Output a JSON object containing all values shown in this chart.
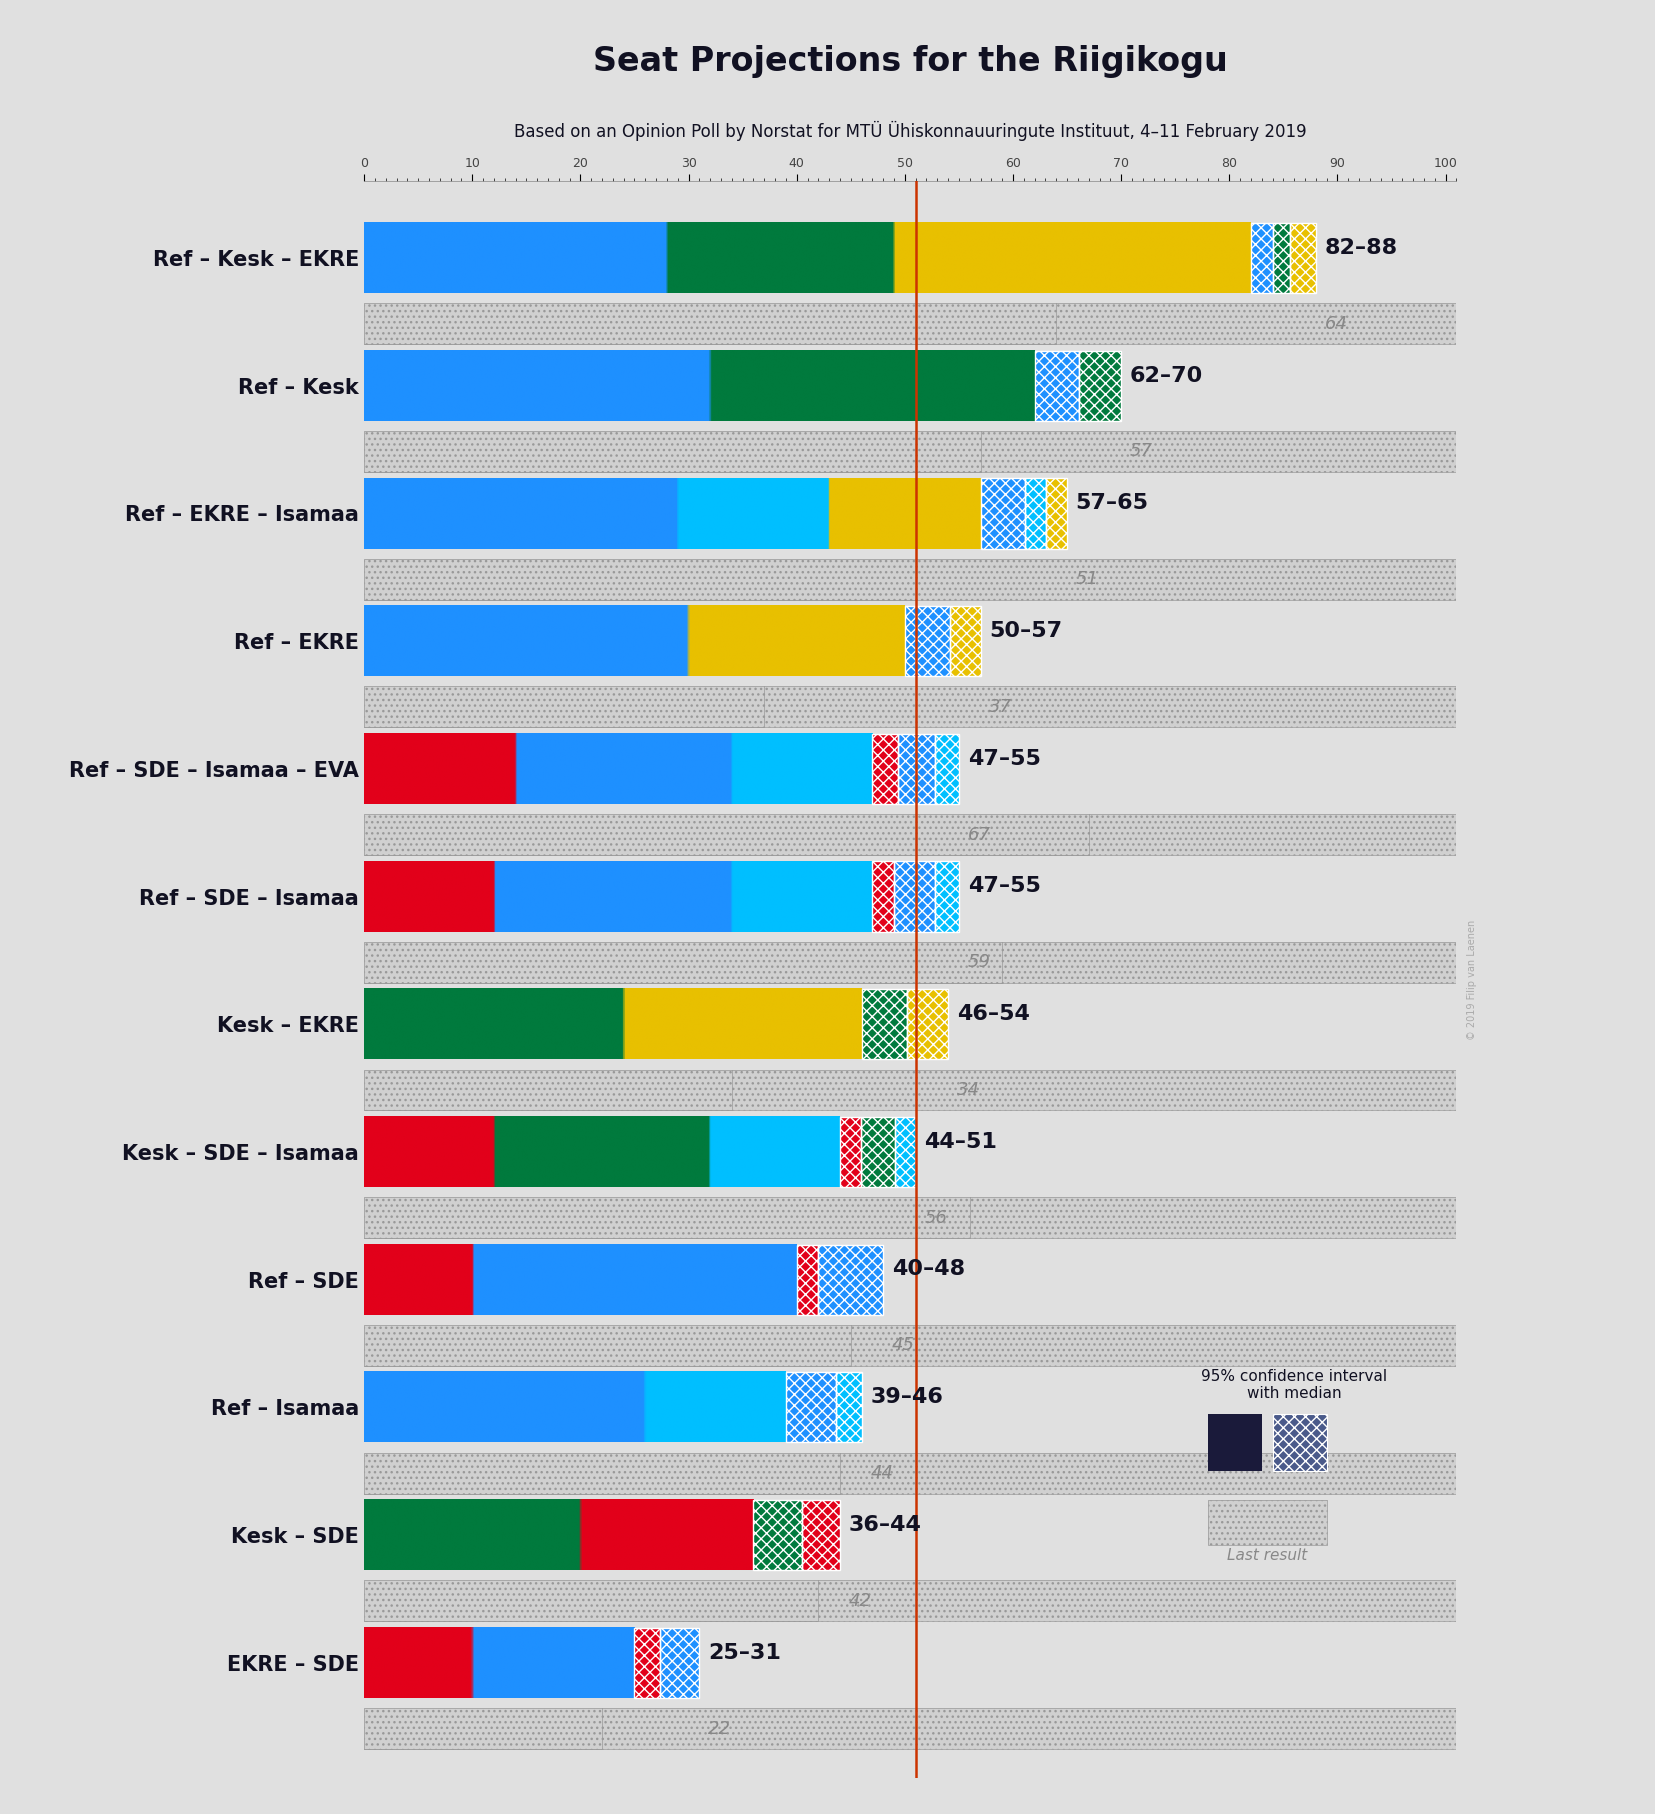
{
  "title": "Seat Projections for the Riigikogu",
  "subtitle": "Based on an Opinion Poll by Norstat for MTÜ Ühiskonnauuringute Instituut, 4–11 February 2019",
  "background_color": "#e0e0e0",
  "majority_line": 51,
  "watermark": "© 2019 Filip van Laenen",
  "coalitions": [
    {
      "label": "Ref – Kesk – EKRE",
      "underline": false,
      "ci_low": 82,
      "ci_high": 88,
      "median": 85,
      "last": 64,
      "parties": [
        "Ref",
        "Kesk",
        "EKRE"
      ],
      "party_seats_low": [
        28,
        21,
        33
      ],
      "colors": [
        "#1e90ff",
        "#007a3d",
        "#e8c000"
      ]
    },
    {
      "label": "Ref – Kesk",
      "underline": false,
      "ci_low": 62,
      "ci_high": 70,
      "median": 66,
      "last": 57,
      "parties": [
        "Ref",
        "Kesk"
      ],
      "party_seats_low": [
        32,
        30
      ],
      "colors": [
        "#1e90ff",
        "#007a3d"
      ]
    },
    {
      "label": "Ref – EKRE – Isamaa",
      "underline": false,
      "ci_low": 57,
      "ci_high": 65,
      "median": 61,
      "last": 51,
      "parties": [
        "Ref",
        "Isamaa",
        "EKRE"
      ],
      "party_seats_low": [
        29,
        14,
        14
      ],
      "colors": [
        "#1e90ff",
        "#00bfff",
        "#e8c000"
      ]
    },
    {
      "label": "Ref – EKRE",
      "underline": false,
      "ci_low": 50,
      "ci_high": 57,
      "median": 53,
      "last": 37,
      "parties": [
        "Ref",
        "EKRE"
      ],
      "party_seats_low": [
        30,
        20
      ],
      "colors": [
        "#1e90ff",
        "#e8c000"
      ]
    },
    {
      "label": "Ref – SDE – Isamaa – EVA",
      "underline": false,
      "ci_low": 47,
      "ci_high": 55,
      "median": 51,
      "last": 67,
      "parties": [
        "SDE",
        "Ref",
        "Isamaa"
      ],
      "party_seats_low": [
        14,
        20,
        13
      ],
      "colors": [
        "#e2001a",
        "#1e90ff",
        "#00bfff"
      ]
    },
    {
      "label": "Ref – SDE – Isamaa",
      "underline": false,
      "ci_low": 47,
      "ci_high": 55,
      "median": 51,
      "last": 59,
      "parties": [
        "SDE",
        "Ref",
        "Isamaa"
      ],
      "party_seats_low": [
        12,
        22,
        13
      ],
      "colors": [
        "#e2001a",
        "#1e90ff",
        "#00bfff"
      ]
    },
    {
      "label": "Kesk – EKRE",
      "underline": false,
      "ci_low": 46,
      "ci_high": 54,
      "median": 50,
      "last": 34,
      "parties": [
        "Kesk",
        "EKRE"
      ],
      "party_seats_low": [
        24,
        22
      ],
      "colors": [
        "#007a3d",
        "#e8c000"
      ]
    },
    {
      "label": "Kesk – SDE – Isamaa",
      "underline": true,
      "ci_low": 44,
      "ci_high": 51,
      "median": 47,
      "last": 56,
      "parties": [
        "SDE",
        "Kesk",
        "Isamaa"
      ],
      "party_seats_low": [
        12,
        20,
        12
      ],
      "colors": [
        "#e2001a",
        "#007a3d",
        "#00bfff"
      ]
    },
    {
      "label": "Ref – SDE",
      "underline": false,
      "ci_low": 40,
      "ci_high": 48,
      "median": 44,
      "last": 45,
      "parties": [
        "SDE",
        "Ref"
      ],
      "party_seats_low": [
        10,
        30
      ],
      "colors": [
        "#e2001a",
        "#1e90ff"
      ]
    },
    {
      "label": "Ref – Isamaa",
      "underline": false,
      "ci_low": 39,
      "ci_high": 46,
      "median": 42,
      "last": 44,
      "parties": [
        "Ref",
        "Isamaa"
      ],
      "party_seats_low": [
        26,
        13
      ],
      "colors": [
        "#1e90ff",
        "#00bfff"
      ]
    },
    {
      "label": "Kesk – SDE",
      "underline": false,
      "ci_low": 36,
      "ci_high": 44,
      "median": 40,
      "last": 42,
      "parties": [
        "Kesk",
        "SDE"
      ],
      "party_seats_low": [
        20,
        16
      ],
      "colors": [
        "#007a3d",
        "#e2001a"
      ]
    },
    {
      "label": "EKRE – SDE",
      "underline": false,
      "ci_low": 25,
      "ci_high": 31,
      "median": 28,
      "last": 22,
      "parties": [
        "SDE",
        "EKRE"
      ],
      "party_seats_low": [
        10,
        15
      ],
      "colors": [
        "#e2001a",
        "#1e90ff"
      ]
    }
  ]
}
